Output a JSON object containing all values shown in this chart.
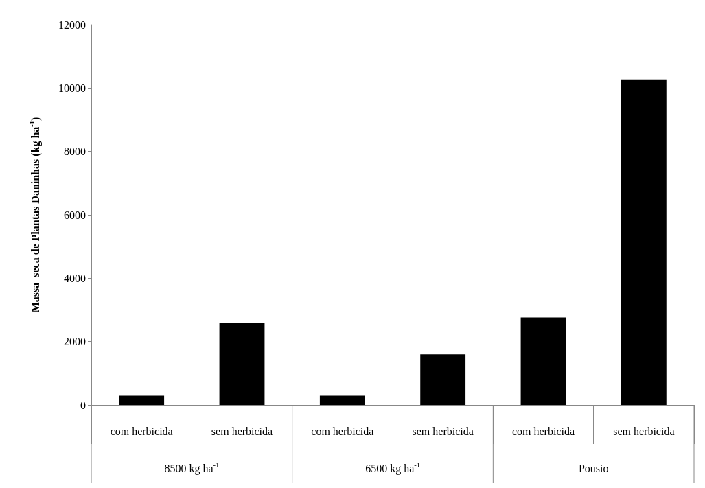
{
  "chart_data": {
    "type": "bar",
    "ylabel": "Massa  seca de Plantas Daninhas (kg ha$^{-1}$)",
    "categories": [
      "com herbicida",
      "sem herbicida",
      "com herbicida",
      "sem herbicida",
      "com herbicida",
      "sem herbicida"
    ],
    "values": [
      290,
      2590,
      290,
      1600,
      2760,
      10270
    ],
    "color": "#000000",
    "annotations": [
      "8500 kg ha$^{-1}$",
      "6500 kg ha$^{-1}$",
      "Pousio"
    ],
    "ylim": [
      0,
      12000
    ],
    "yticks": [
      0,
      2000,
      4000,
      6000,
      8000,
      10000,
      12000
    ],
    "grid": false
  }
}
